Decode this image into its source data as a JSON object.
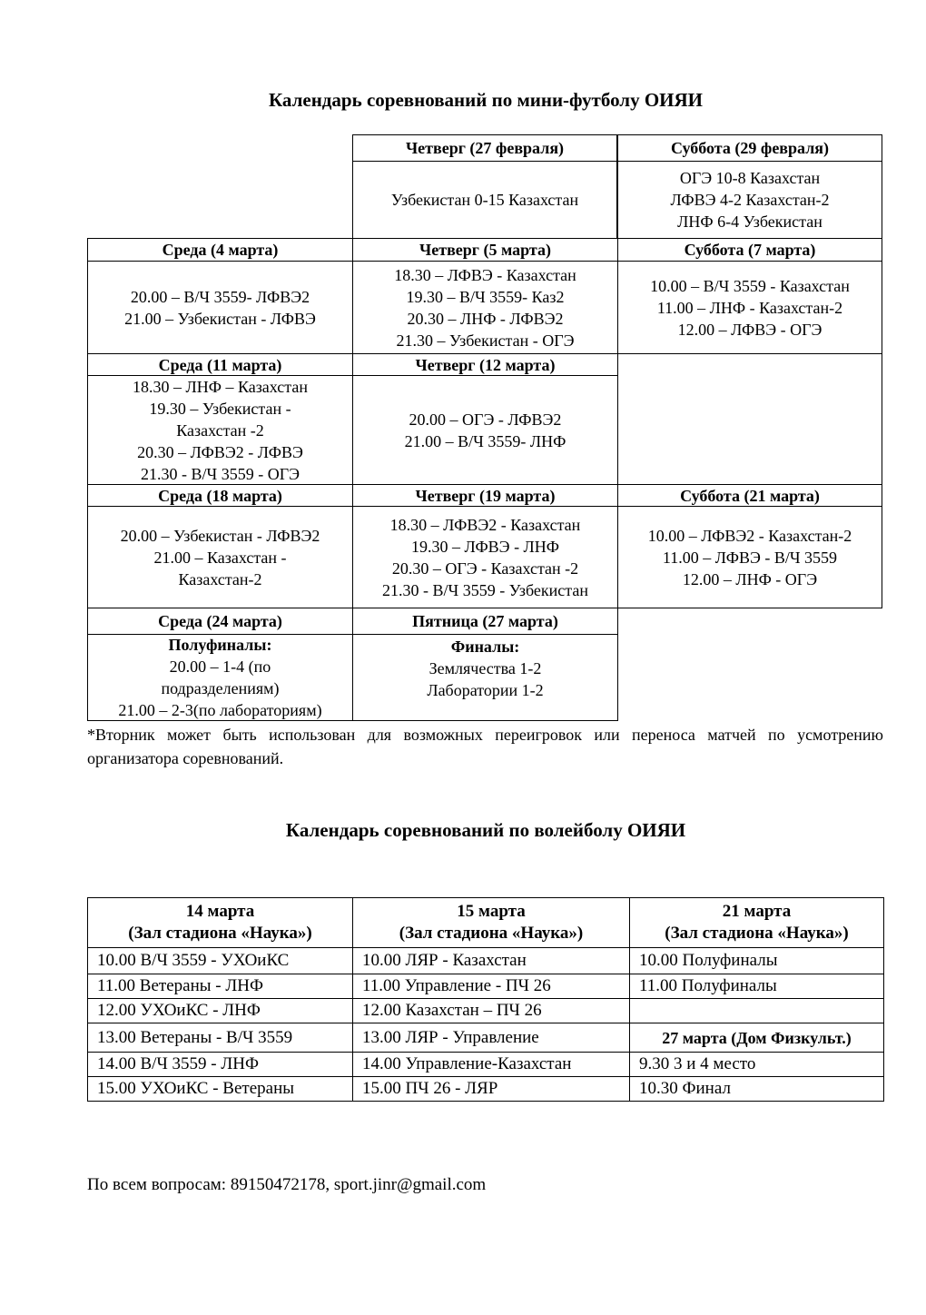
{
  "football": {
    "title": "Календарь соревнований по мини-футболу ОИЯИ",
    "cells": {
      "feb27_h": "Четверг (27 февраля)",
      "feb27_b": "Узбекистан 0-15 Казахстан",
      "feb29_h": "Суббота (29 февраля)",
      "feb29_b": "ОГЭ 10-8 Казахстан\nЛФВЭ 4-2 Казахстан-2\nЛНФ 6-4 Узбекистан",
      "mar4_h": "Среда (4 марта)",
      "mar4_b": "20.00 – В/Ч 3559- ЛФВЭ2\n21.00 – Узбекистан - ЛФВЭ",
      "mar5_h": "Четверг (5 марта)",
      "mar5_b": "18.30 – ЛФВЭ - Казахстан\n19.30 – В/Ч 3559- Каз2\n20.30 – ЛНФ - ЛФВЭ2\n21.30 – Узбекистан - ОГЭ",
      "mar7_h": "Суббота (7 марта)",
      "mar7_b": "10.00 – В/Ч 3559 - Казахстан\n11.00 – ЛНФ - Казахстан-2\n12.00 – ЛФВЭ - ОГЭ",
      "mar11_h": "Среда (11 марта)",
      "mar11_b": "18.30 – ЛНФ – Казахстан\n19.30 – Узбекистан -\nКазахстан -2\n20.30 – ЛФВЭ2 - ЛФВЭ\n21.30 - В/Ч 3559 - ОГЭ",
      "mar12_h": "Четверг (12 марта)",
      "mar12_b": "20.00 – ОГЭ - ЛФВЭ2\n21.00 – В/Ч 3559- ЛНФ",
      "mar18_h": "Среда (18 марта)",
      "mar18_b": "20.00 – Узбекистан - ЛФВЭ2\n21.00 – Казахстан -\nКазахстан-2",
      "mar19_h": "Четверг (19 марта)",
      "mar19_b": "18.30 – ЛФВЭ2 - Казахстан\n19.30 – ЛФВЭ - ЛНФ\n20.30 – ОГЭ - Казахстан -2\n21.30 - В/Ч 3559 - Узбекистан",
      "mar21_h": "Суббота (21 марта)",
      "mar21_b": "10.00 – ЛФВЭ2 - Казахстан-2\n11.00 – ЛФВЭ - В/Ч 3559\n12.00 – ЛНФ - ОГЭ",
      "mar24_h": "Среда (24 марта)",
      "mar24_b_title": "Полуфиналы:",
      "mar24_b": "20.00 – 1-4 (по\nподразделениям)\n21.00 – 2-3(по лабораториям)",
      "mar27_h": "Пятница (27 марта)",
      "mar27_b_title": "Финалы:",
      "mar27_b": "Землячества 1-2\nЛаборатории 1-2"
    },
    "note": "*Вторник может быть использован для возможных переигровок или переноса матчей по усмотрению организатора соревнований."
  },
  "volleyball": {
    "title": "Календарь соревнований по волейболу ОИЯИ",
    "headers": [
      "14 марта\n(Зал стадиона «Наука»)",
      "15 марта\n(Зал стадиона «Наука»)",
      "21 марта\n(Зал стадиона «Наука»)"
    ],
    "rows": [
      [
        "10.00 В/Ч 3559 - УХОиКС",
        "10.00 ЛЯР - Казахстан",
        "10.00 Полуфиналы"
      ],
      [
        "11.00 Ветераны - ЛНФ",
        "11.00 Управление - ПЧ 26",
        "11.00 Полуфиналы"
      ],
      [
        "12.00 УХОиКС - ЛНФ",
        "12.00 Казахстан – ПЧ 26",
        ""
      ],
      [
        "13.00 Ветераны - В/Ч 3559",
        "13.00 ЛЯР - Управление",
        "27 марта (Дом Физкульт.)"
      ],
      [
        "14.00 В/Ч 3559 - ЛНФ",
        "14.00 Управление-Казахстан",
        "9.30 3 и 4 место"
      ],
      [
        "15.00 УХОиКС - Ветераны",
        "15.00 ПЧ 26 - ЛЯР",
        "10.30 Финал"
      ]
    ]
  },
  "contact": "По всем вопросам: 89150472178, sport.jinr@gmail.com"
}
